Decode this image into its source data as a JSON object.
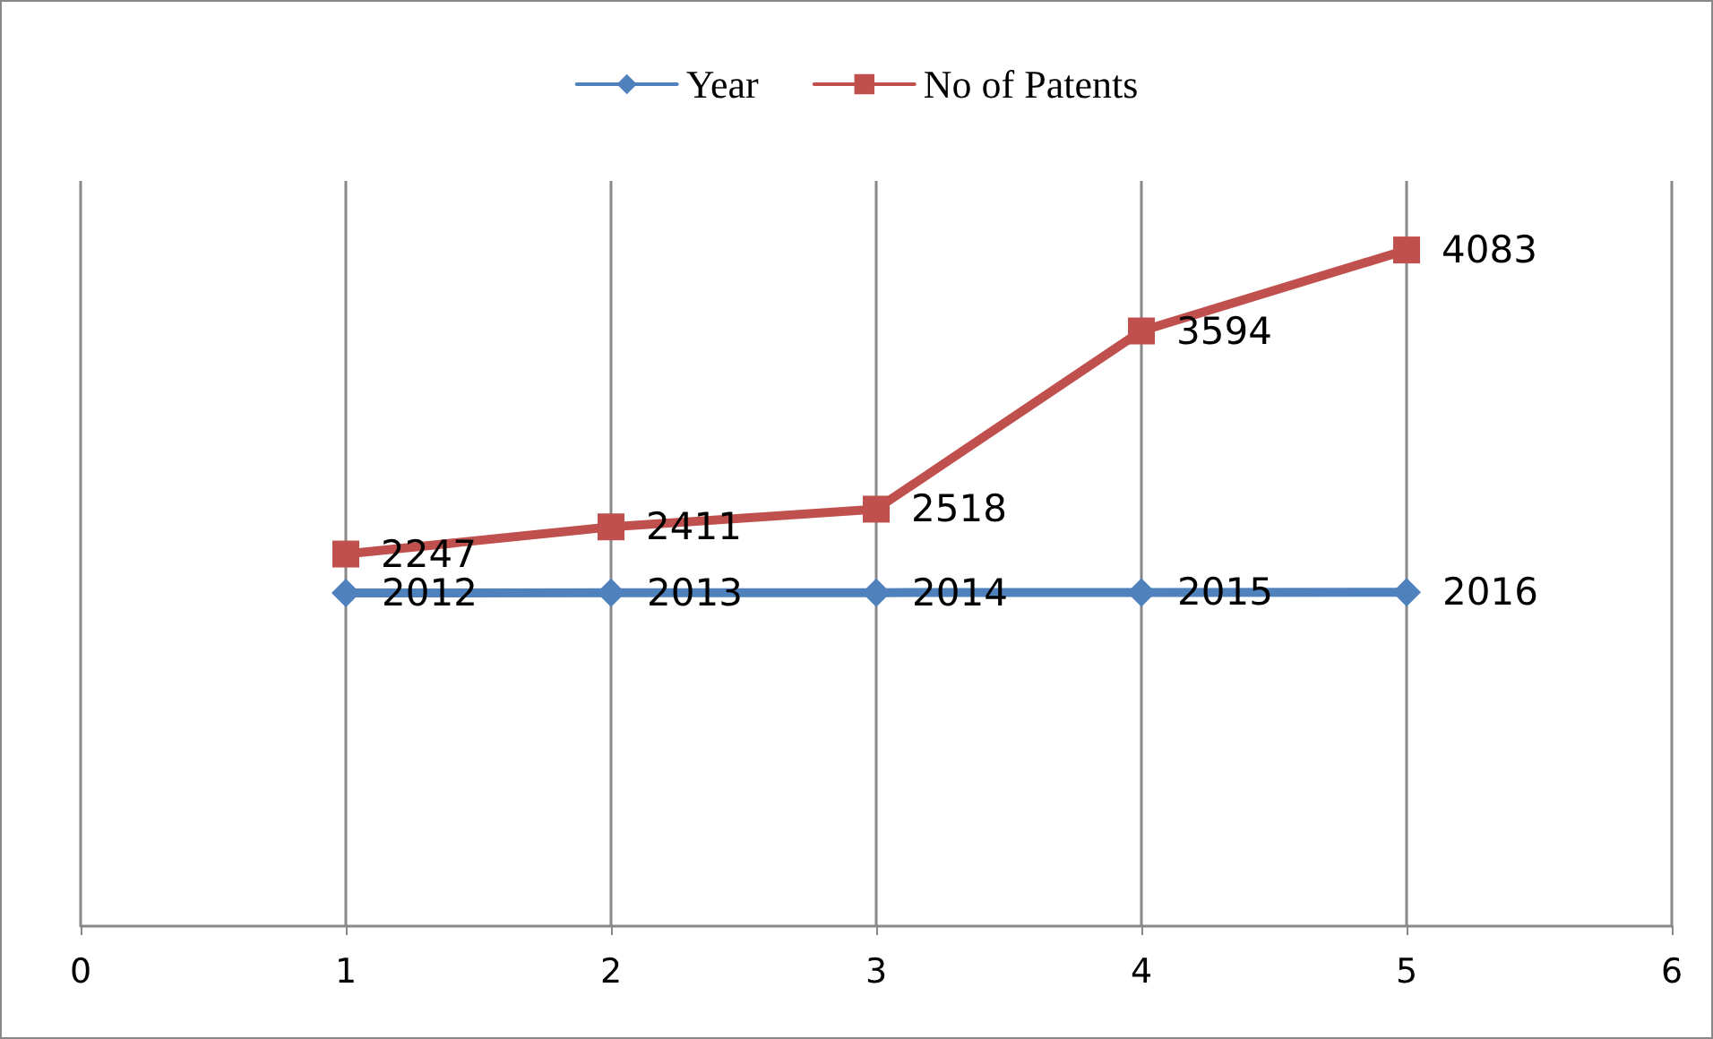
{
  "chart_data": {
    "type": "line",
    "x": [
      1,
      2,
      3,
      4,
      5
    ],
    "series": [
      {
        "name": "Year",
        "color": "#4f81bd",
        "marker": "diamond",
        "values": [
          2012,
          2013,
          2014,
          2015,
          2016
        ]
      },
      {
        "name": "No of Patents",
        "color": "#c0504d",
        "marker": "square",
        "values": [
          2247,
          2411,
          2518,
          3594,
          4083
        ]
      }
    ],
    "xlim": [
      0,
      6
    ],
    "xticks": [
      0,
      1,
      2,
      3,
      4,
      5,
      6
    ],
    "ylim": [
      0,
      4500
    ],
    "tick_labels": "x",
    "grid": "x",
    "legend": "top",
    "data_labels": true,
    "line_style": "solid"
  }
}
